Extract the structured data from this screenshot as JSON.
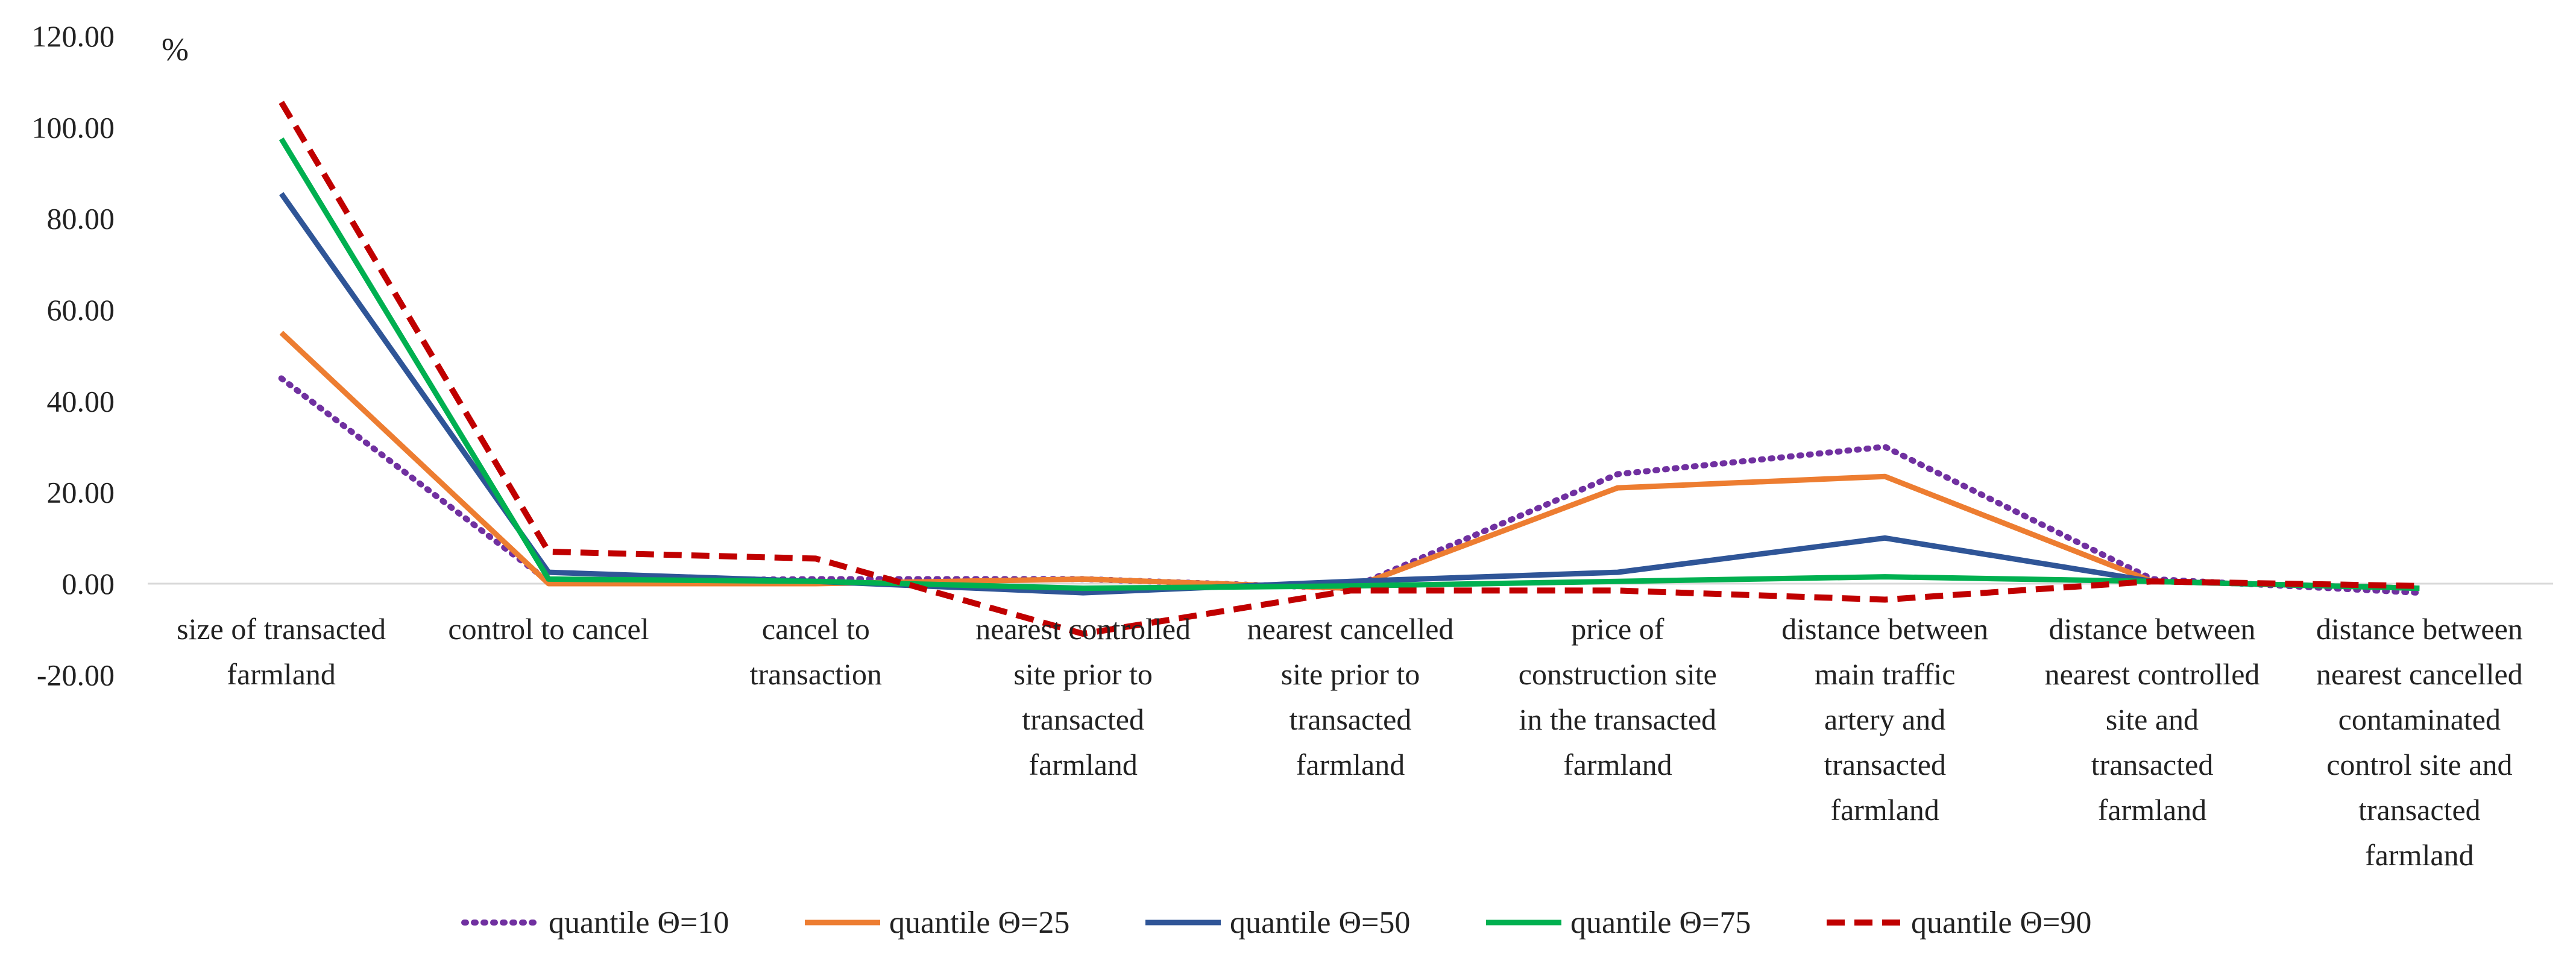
{
  "chart_data": {
    "type": "line",
    "ylabel": "%",
    "ylim": [
      -20,
      120
    ],
    "yticks": [
      "120.00",
      "100.00",
      "80.00",
      "60.00",
      "40.00",
      "20.00",
      "0.00",
      "-20.00"
    ],
    "ytick_values": [
      120,
      100,
      80,
      60,
      40,
      20,
      0,
      -20
    ],
    "categories": [
      [
        "size of transacted",
        "farmland"
      ],
      [
        "control to cancel"
      ],
      [
        "cancel to",
        "transaction"
      ],
      [
        "nearest controlled",
        "site prior to",
        "transacted",
        "farmland"
      ],
      [
        "nearest cancelled",
        "site prior to",
        "transacted",
        "farmland"
      ],
      [
        "price of",
        "construction site",
        "in the transacted",
        "farmland"
      ],
      [
        "distance between",
        "main traffic",
        "artery and",
        "transacted",
        "farmland"
      ],
      [
        "distance between",
        "nearest controlled",
        "site and",
        "transacted",
        "farmland"
      ],
      [
        "distance between",
        "nearest cancelled",
        "contaminated",
        "control site and",
        "transacted",
        "farmland"
      ]
    ],
    "series": [
      {
        "name": "quantile Θ=10",
        "color": "#7030a0",
        "style": "dotted",
        "values": [
          45,
          0.5,
          1,
          1,
          -1,
          24,
          30,
          1,
          -2
        ]
      },
      {
        "name": "quantile Θ=25",
        "color": "#ed7d31",
        "style": "solid",
        "values": [
          55,
          0,
          0,
          1,
          -1,
          21,
          23.5,
          0.5,
          -1
        ]
      },
      {
        "name": "quantile Θ=50",
        "color": "#2f5597",
        "style": "solid",
        "values": [
          85.5,
          2.5,
          0.5,
          -2,
          0.5,
          2.5,
          10,
          0.5,
          -1
        ]
      },
      {
        "name": "quantile Θ=75",
        "color": "#00b050",
        "style": "solid",
        "values": [
          97.5,
          1,
          0.5,
          -1,
          -0.5,
          0.5,
          1.5,
          0.5,
          -1
        ]
      },
      {
        "name": "quantile Θ=90",
        "color": "#c00000",
        "style": "dashed",
        "values": [
          105.5,
          7,
          5.5,
          -11,
          -1.5,
          -1.5,
          -3.5,
          0.5,
          -0.5
        ]
      }
    ],
    "grid": false,
    "legend": "bottom"
  }
}
